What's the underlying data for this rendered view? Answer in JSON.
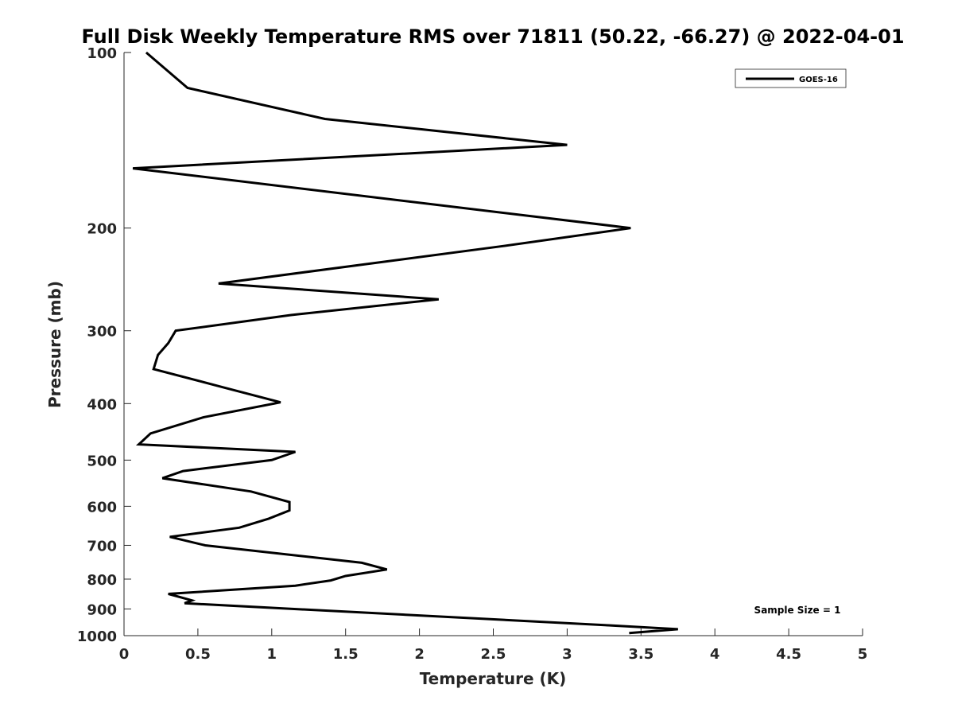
{
  "chart_data": {
    "type": "line",
    "title": "Full Disk Weekly Temperature RMS over 71811 (50.22, -66.27) @ 2022-04-01",
    "xlabel": "Temperature (K)",
    "ylabel": "Pressure (mb)",
    "xlim": [
      0,
      5
    ],
    "ylim": [
      100,
      1000
    ],
    "yscale": "log",
    "y_reversed": true,
    "grid": false,
    "legend_position": "top-right",
    "x_ticks": [
      0,
      0.5,
      1,
      1.5,
      2,
      2.5,
      3,
      3.5,
      4,
      4.5,
      5
    ],
    "x_tick_labels": [
      "0",
      "0.5",
      "1",
      "1.5",
      "2",
      "2.5",
      "3",
      "3.5",
      "4",
      "4.5",
      "5"
    ],
    "y_ticks": [
      100,
      200,
      300,
      400,
      500,
      600,
      700,
      800,
      900,
      1000
    ],
    "y_tick_labels": [
      "100",
      "200",
      "300",
      "400",
      "500",
      "600",
      "700",
      "800",
      "900",
      "1000"
    ],
    "annotation": "Sample Size = 1",
    "series": [
      {
        "name": "GOES-16",
        "color": "#000000",
        "x": [
          0.15,
          0.43,
          1.36,
          3.0,
          0.06,
          3.43,
          2.55,
          0.64,
          2.13,
          1.13,
          0.35,
          0.3,
          0.23,
          0.2,
          0.67,
          1.06,
          0.54,
          0.18,
          0.1,
          1.16,
          1.0,
          0.4,
          0.26,
          0.86,
          1.12,
          1.12,
          0.98,
          0.78,
          0.31,
          0.55,
          1.61,
          1.78,
          1.5,
          1.4,
          1.16,
          0.3,
          0.46,
          0.41,
          3.28,
          3.75,
          3.42
        ],
        "y": [
          100,
          115,
          130,
          144,
          158,
          200,
          215,
          249,
          265,
          282,
          300,
          315,
          330,
          349,
          375,
          398,
          422,
          450,
          470,
          484,
          500,
          522,
          537,
          566,
          590,
          610,
          630,
          653,
          677,
          700,
          750,
          770,
          790,
          804,
          821,
          848,
          870,
          880,
          960,
          975,
          990
        ]
      }
    ]
  }
}
